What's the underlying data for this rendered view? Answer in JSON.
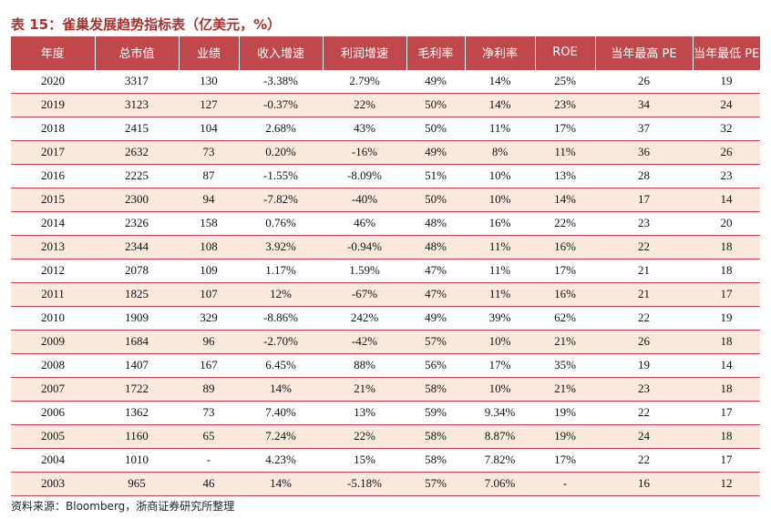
{
  "title": "表 15：雀巢发展趋势指标表（亿美元，%）",
  "columns": [
    "年度",
    "总市值",
    "业绩",
    "收入增速",
    "利润增速",
    "毛利率",
    "净利率",
    "ROE",
    "当年最高 PE",
    "当年最低 PE"
  ],
  "rows": [
    [
      "2020",
      "3317",
      "130",
      "-3.38%",
      "2.79%",
      "49%",
      "14%",
      "25%",
      "26",
      "19"
    ],
    [
      "2019",
      "3123",
      "127",
      "-0.37%",
      "22%",
      "50%",
      "14%",
      "23%",
      "34",
      "24"
    ],
    [
      "2018",
      "2415",
      "104",
      "2.68%",
      "43%",
      "50%",
      "11%",
      "17%",
      "37",
      "32"
    ],
    [
      "2017",
      "2632",
      "73",
      "0.20%",
      "-16%",
      "49%",
      "8%",
      "11%",
      "36",
      "26"
    ],
    [
      "2016",
      "2225",
      "87",
      "-1.55%",
      "-8.09%",
      "51%",
      "10%",
      "13%",
      "28",
      "23"
    ],
    [
      "2015",
      "2300",
      "94",
      "-7.82%",
      "-40%",
      "50%",
      "10%",
      "14%",
      "17",
      "14"
    ],
    [
      "2014",
      "2326",
      "158",
      "0.76%",
      "46%",
      "48%",
      "16%",
      "22%",
      "23",
      "20"
    ],
    [
      "2013",
      "2344",
      "108",
      "3.92%",
      "-0.94%",
      "48%",
      "11%",
      "16%",
      "22",
      "18"
    ],
    [
      "2012",
      "2078",
      "109",
      "1.17%",
      "1.59%",
      "47%",
      "11%",
      "17%",
      "21",
      "18"
    ],
    [
      "2011",
      "1825",
      "107",
      "12%",
      "-67%",
      "47%",
      "11%",
      "16%",
      "21",
      "17"
    ],
    [
      "2010",
      "1909",
      "329",
      "-8.86%",
      "242%",
      "49%",
      "39%",
      "62%",
      "22",
      "19"
    ],
    [
      "2009",
      "1684",
      "96",
      "-2.70%",
      "-42%",
      "57%",
      "10%",
      "21%",
      "26",
      "18"
    ],
    [
      "2008",
      "1407",
      "167",
      "6.45%",
      "88%",
      "56%",
      "17%",
      "35%",
      "19",
      "14"
    ],
    [
      "2007",
      "1722",
      "89",
      "14%",
      "21%",
      "58%",
      "10%",
      "21%",
      "23",
      "18"
    ],
    [
      "2006",
      "1362",
      "73",
      "7.40%",
      "13%",
      "59%",
      "9.34%",
      "19%",
      "22",
      "17"
    ],
    [
      "2005",
      "1160",
      "65",
      "7.24%",
      "22%",
      "58%",
      "8.87%",
      "19%",
      "24",
      "18"
    ],
    [
      "2004",
      "1010",
      "-",
      "4.23%",
      "15%",
      "58%",
      "7.82%",
      "17%",
      "22",
      "17"
    ],
    [
      "2003",
      "965",
      "46",
      "14%",
      "-5.18%",
      "57%",
      "7.06%",
      "-",
      "16",
      "12"
    ]
  ],
  "source": "资料来源：Bloomberg，浙商证券研究所整理",
  "colors": {
    "header_bg": "#c0484a",
    "title": "#a8312f",
    "stripe": "#fbe9dd"
  }
}
